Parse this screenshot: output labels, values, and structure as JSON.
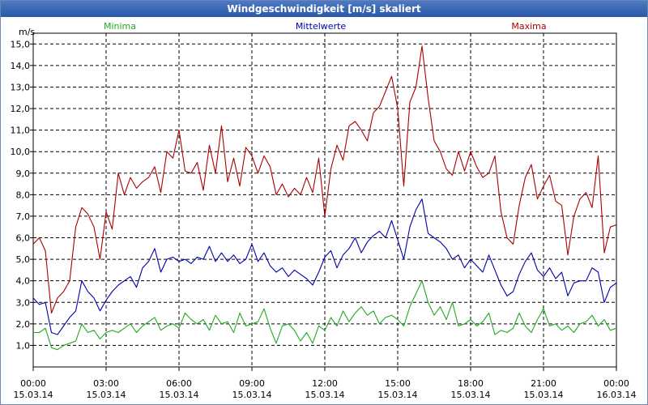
{
  "window": {
    "title": "Windgeschwindigkeit [m/s] skaliert"
  },
  "chart_data": {
    "type": "line",
    "title": "Windgeschwindigkeit [m/s] skaliert",
    "ylabel": "m/s",
    "xlabel": "",
    "ylim": [
      0,
      15.5
    ],
    "xlim": [
      0,
      24
    ],
    "grid": true,
    "legend": [
      {
        "name": "Minima",
        "color": "#22aa22"
      },
      {
        "name": "Mittelwerte",
        "color": "#0000aa"
      },
      {
        "name": "Maxima",
        "color": "#aa0000"
      }
    ],
    "y_ticks": [
      "1,0",
      "2,0",
      "3,0",
      "4,0",
      "5,0",
      "6,0",
      "7,0",
      "8,0",
      "9,0",
      "10,0",
      "11,0",
      "12,0",
      "13,0",
      "14,0",
      "15,0"
    ],
    "x_ticks": [
      {
        "time": "00:00",
        "date": "15.03.14"
      },
      {
        "time": "03:00",
        "date": "15.03.14"
      },
      {
        "time": "06:00",
        "date": "15.03.14"
      },
      {
        "time": "09:00",
        "date": "15.03.14"
      },
      {
        "time": "12:00",
        "date": "15.03.14"
      },
      {
        "time": "15:00",
        "date": "15.03.14"
      },
      {
        "time": "18:00",
        "date": "15.03.14"
      },
      {
        "time": "21:00",
        "date": "15.03.14"
      },
      {
        "time": "00:00",
        "date": "16.03.14"
      }
    ],
    "series": [
      {
        "name": "Maxima",
        "color": "#aa0000",
        "x": [
          0,
          0.25,
          0.5,
          0.75,
          1,
          1.25,
          1.5,
          1.75,
          2,
          2.25,
          2.5,
          2.75,
          3,
          3.25,
          3.5,
          3.75,
          4,
          4.25,
          4.5,
          4.75,
          5,
          5.25,
          5.5,
          5.75,
          6,
          6.25,
          6.5,
          6.75,
          7,
          7.25,
          7.5,
          7.75,
          8,
          8.25,
          8.5,
          8.75,
          9,
          9.25,
          9.5,
          9.75,
          10,
          10.25,
          10.5,
          10.75,
          11,
          11.25,
          11.5,
          11.75,
          12,
          12.25,
          12.5,
          12.75,
          13,
          13.25,
          13.5,
          13.75,
          14,
          14.25,
          14.5,
          14.75,
          15,
          15.25,
          15.5,
          15.75,
          16,
          16.25,
          16.5,
          16.75,
          17,
          17.25,
          17.5,
          17.75,
          18,
          18.25,
          18.5,
          18.75,
          19,
          19.25,
          19.5,
          19.75,
          20,
          20.25,
          20.5,
          20.75,
          21,
          21.25,
          21.5,
          21.75,
          22,
          22.25,
          22.5,
          22.75,
          23,
          23.25,
          23.5,
          23.75,
          24
        ],
        "values": [
          5.7,
          6.0,
          5.4,
          2.5,
          3.2,
          3.5,
          4.0,
          6.5,
          7.4,
          7.1,
          6.5,
          5.0,
          7.2,
          6.4,
          9.0,
          8.0,
          8.8,
          8.3,
          8.6,
          8.8,
          9.3,
          8.1,
          10.0,
          9.7,
          11.0,
          9.1,
          9.0,
          9.5,
          8.2,
          10.3,
          9.0,
          11.2,
          8.6,
          9.7,
          8.4,
          10.2,
          9.8,
          9.0,
          9.8,
          9.3,
          8.0,
          8.5,
          7.9,
          8.3,
          8.0,
          8.8,
          8.1,
          9.7,
          7.0,
          9.2,
          10.3,
          9.6,
          11.2,
          11.4,
          11.0,
          10.5,
          11.8,
          12.1,
          12.8,
          13.5,
          12.0,
          8.4,
          12.3,
          13.0,
          14.9,
          12.5,
          10.5,
          10.0,
          9.2,
          8.9,
          10.0,
          9.1,
          10.0,
          9.3,
          8.8,
          9.0,
          9.8,
          7.2,
          6.0,
          5.7,
          7.5,
          8.8,
          9.4,
          7.8,
          8.4,
          8.9,
          7.7,
          7.5,
          5.2,
          7.0,
          7.8,
          8.1,
          7.4,
          9.8,
          5.3,
          6.5,
          6.6
        ]
      },
      {
        "name": "Mittelwerte",
        "color": "#0000aa",
        "x": [
          0,
          0.25,
          0.5,
          0.75,
          1,
          1.25,
          1.5,
          1.75,
          2,
          2.25,
          2.5,
          2.75,
          3,
          3.25,
          3.5,
          3.75,
          4,
          4.25,
          4.5,
          4.75,
          5,
          5.25,
          5.5,
          5.75,
          6,
          6.25,
          6.5,
          6.75,
          7,
          7.25,
          7.5,
          7.75,
          8,
          8.25,
          8.5,
          8.75,
          9,
          9.25,
          9.5,
          9.75,
          10,
          10.25,
          10.5,
          10.75,
          11,
          11.25,
          11.5,
          11.75,
          12,
          12.25,
          12.5,
          12.75,
          13,
          13.25,
          13.5,
          13.75,
          14,
          14.25,
          14.5,
          14.75,
          15,
          15.25,
          15.5,
          15.75,
          16,
          16.25,
          16.5,
          16.75,
          17,
          17.25,
          17.5,
          17.75,
          18,
          18.25,
          18.5,
          18.75,
          19,
          19.25,
          19.5,
          19.75,
          20,
          20.25,
          20.5,
          20.75,
          21,
          21.25,
          21.5,
          21.75,
          22,
          22.25,
          22.5,
          22.75,
          23,
          23.25,
          23.5,
          23.75,
          24
        ],
        "values": [
          3.2,
          2.9,
          3.0,
          1.6,
          1.5,
          1.9,
          2.3,
          2.6,
          4.0,
          3.5,
          3.2,
          2.6,
          3.1,
          3.5,
          3.8,
          4.0,
          4.2,
          3.7,
          4.6,
          4.9,
          5.5,
          4.4,
          5.0,
          5.1,
          4.9,
          5.0,
          4.8,
          5.1,
          5.0,
          5.6,
          4.9,
          5.3,
          4.9,
          5.2,
          4.8,
          5.0,
          5.7,
          4.9,
          5.3,
          4.7,
          4.4,
          4.6,
          4.2,
          4.5,
          4.3,
          4.1,
          3.8,
          4.4,
          5.1,
          5.4,
          4.6,
          5.2,
          5.5,
          6.0,
          5.3,
          5.8,
          6.1,
          6.3,
          6.0,
          6.8,
          5.9,
          5.0,
          6.5,
          7.3,
          7.8,
          6.2,
          6.0,
          5.8,
          5.5,
          5.0,
          5.2,
          4.6,
          5.0,
          4.7,
          4.4,
          5.2,
          4.5,
          3.8,
          3.3,
          3.5,
          4.3,
          4.9,
          5.3,
          4.5,
          4.2,
          4.6,
          4.1,
          4.4,
          3.3,
          3.9,
          4.0,
          4.0,
          4.6,
          4.4,
          3.0,
          3.7,
          3.9
        ]
      },
      {
        "name": "Minima",
        "color": "#22aa22",
        "x": [
          0,
          0.25,
          0.5,
          0.75,
          1,
          1.25,
          1.5,
          1.75,
          2,
          2.25,
          2.5,
          2.75,
          3,
          3.25,
          3.5,
          3.75,
          4,
          4.25,
          4.5,
          4.75,
          5,
          5.25,
          5.5,
          5.75,
          6,
          6.25,
          6.5,
          6.75,
          7,
          7.25,
          7.5,
          7.75,
          8,
          8.25,
          8.5,
          8.75,
          9,
          9.25,
          9.5,
          9.75,
          10,
          10.25,
          10.5,
          10.75,
          11,
          11.25,
          11.5,
          11.75,
          12,
          12.25,
          12.5,
          12.75,
          13,
          13.25,
          13.5,
          13.75,
          14,
          14.25,
          14.5,
          14.75,
          15,
          15.25,
          15.5,
          15.75,
          16,
          16.25,
          16.5,
          16.75,
          17,
          17.25,
          17.5,
          17.75,
          18,
          18.25,
          18.5,
          18.75,
          19,
          19.25,
          19.5,
          19.75,
          20,
          20.25,
          20.5,
          20.75,
          21,
          21.25,
          21.5,
          21.75,
          22,
          22.25,
          22.5,
          22.75,
          23,
          23.25,
          23.5,
          23.75,
          24
        ],
        "values": [
          1.6,
          1.6,
          1.8,
          0.9,
          0.8,
          1.0,
          1.1,
          1.2,
          2.0,
          1.6,
          1.7,
          1.3,
          1.6,
          1.7,
          1.6,
          1.8,
          2.0,
          1.6,
          1.9,
          2.1,
          2.3,
          1.7,
          1.9,
          2.0,
          1.8,
          2.5,
          2.2,
          2.0,
          2.2,
          1.7,
          2.4,
          2.0,
          2.1,
          1.6,
          2.5,
          1.9,
          2.0,
          2.1,
          2.7,
          1.8,
          1.1,
          1.9,
          2.0,
          1.7,
          1.2,
          1.6,
          1.1,
          1.9,
          1.7,
          2.3,
          1.9,
          2.6,
          2.1,
          2.5,
          2.8,
          2.4,
          2.6,
          2.0,
          2.3,
          2.4,
          2.2,
          1.9,
          2.8,
          3.4,
          4.0,
          3.0,
          2.4,
          2.8,
          2.2,
          3.0,
          1.9,
          2.0,
          2.2,
          1.9,
          2.1,
          2.5,
          1.5,
          1.7,
          1.6,
          1.8,
          2.5,
          1.9,
          1.6,
          2.2,
          2.7,
          1.9,
          2.0,
          1.7,
          1.9,
          1.6,
          2.0,
          2.1,
          2.4,
          1.9,
          2.2,
          1.7,
          1.8
        ]
      }
    ]
  }
}
